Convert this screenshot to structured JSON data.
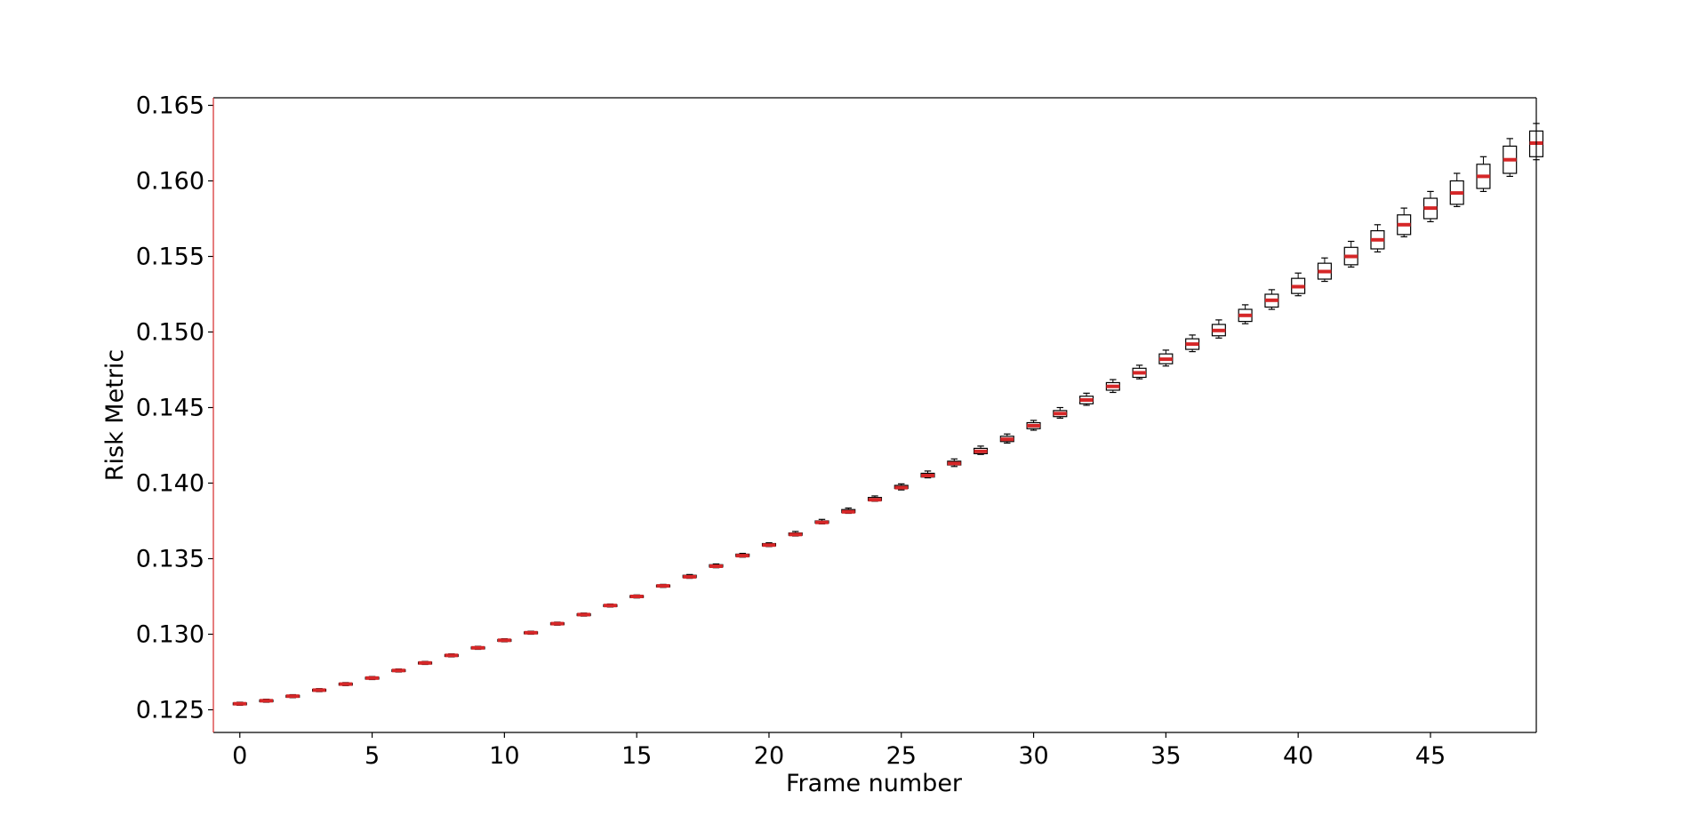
{
  "chart_data": {
    "type": "box",
    "title": "",
    "xlabel": "Frame number",
    "ylabel": "Risk Metric",
    "xlim": [
      -1,
      49
    ],
    "ylim": [
      0.1235,
      0.1655
    ],
    "xticks": [
      0,
      5,
      10,
      15,
      20,
      25,
      30,
      35,
      40,
      45
    ],
    "xtick_labels": [
      "0",
      "5",
      "10",
      "15",
      "20",
      "25",
      "30",
      "35",
      "40",
      "45"
    ],
    "yticks": [
      0.125,
      0.13,
      0.135,
      0.14,
      0.145,
      0.15,
      0.155,
      0.16,
      0.165
    ],
    "ytick_labels": [
      "0.125",
      "0.130",
      "0.135",
      "0.140",
      "0.145",
      "0.150",
      "0.155",
      "0.160",
      "0.165"
    ],
    "grid": false,
    "legend": "none",
    "colors": {
      "median": "#d62728",
      "box": "#000000",
      "left_spine": "#d62728"
    },
    "frames": [
      0,
      1,
      2,
      3,
      4,
      5,
      6,
      7,
      8,
      9,
      10,
      11,
      12,
      13,
      14,
      15,
      16,
      17,
      18,
      19,
      20,
      21,
      22,
      23,
      24,
      25,
      26,
      27,
      28,
      29,
      30,
      31,
      32,
      33,
      34,
      35,
      36,
      37,
      38,
      39,
      40,
      41,
      42,
      43,
      44,
      45,
      46,
      47,
      48,
      49
    ],
    "medians": [
      0.1254,
      0.1256,
      0.1259,
      0.1263,
      0.1267,
      0.1271,
      0.1276,
      0.1281,
      0.1286,
      0.1291,
      0.1296,
      0.1301,
      0.1307,
      0.1313,
      0.1319,
      0.1325,
      0.1332,
      0.1338,
      0.1345,
      0.1352,
      0.1359,
      0.1366,
      0.1374,
      0.1381,
      0.1389,
      0.1397,
      0.1405,
      0.1413,
      0.1421,
      0.1429,
      0.1438,
      0.1446,
      0.1455,
      0.1464,
      0.1473,
      0.1482,
      0.1492,
      0.1501,
      0.1511,
      0.1521,
      0.153,
      0.154,
      0.155,
      0.1561,
      0.1571,
      0.1582,
      0.1592,
      0.1603,
      0.1614,
      0.1625
    ],
    "q1": [
      0.12535,
      0.12555,
      0.12585,
      0.12625,
      0.12665,
      0.12705,
      0.12755,
      0.12805,
      0.12855,
      0.12905,
      0.12955,
      0.13005,
      0.13065,
      0.13125,
      0.13185,
      0.13245,
      0.13315,
      0.13375,
      0.13445,
      0.13515,
      0.13585,
      0.13655,
      0.13735,
      0.13805,
      0.13885,
      0.13965,
      0.1404,
      0.1412,
      0.14195,
      0.14275,
      0.1436,
      0.1444,
      0.14525,
      0.14615,
      0.147,
      0.1479,
      0.14885,
      0.14975,
      0.1507,
      0.15165,
      0.15255,
      0.1535,
      0.15445,
      0.1555,
      0.15645,
      0.1575,
      0.15845,
      0.1595,
      0.1605,
      0.1616
    ],
    "q3": [
      0.12545,
      0.12565,
      0.12595,
      0.12635,
      0.12675,
      0.12715,
      0.12765,
      0.12815,
      0.12865,
      0.12915,
      0.12965,
      0.13015,
      0.13075,
      0.13135,
      0.13195,
      0.13255,
      0.13325,
      0.1339,
      0.1346,
      0.1353,
      0.136,
      0.1367,
      0.1375,
      0.13825,
      0.13905,
      0.13985,
      0.14065,
      0.14145,
      0.1423,
      0.1431,
      0.144,
      0.1448,
      0.14575,
      0.14665,
      0.1476,
      0.14855,
      0.14955,
      0.1505,
      0.1515,
      0.1525,
      0.15355,
      0.15455,
      0.1556,
      0.1567,
      0.15775,
      0.15885,
      0.16,
      0.1611,
      0.1623,
      0.1633
    ],
    "whisker_low": [
      0.1253,
      0.1255,
      0.1258,
      0.1262,
      0.1266,
      0.127,
      0.1275,
      0.128,
      0.1285,
      0.129,
      0.1295,
      0.13,
      0.1306,
      0.1312,
      0.1318,
      0.1324,
      0.1331,
      0.1337,
      0.1344,
      0.1351,
      0.1358,
      0.1365,
      0.1373,
      0.138,
      0.1388,
      0.13955,
      0.14035,
      0.1411,
      0.1419,
      0.14265,
      0.1435,
      0.1443,
      0.14515,
      0.146,
      0.1469,
      0.14775,
      0.1487,
      0.1496,
      0.15055,
      0.1515,
      0.1524,
      0.15335,
      0.1543,
      0.1553,
      0.1563,
      0.1573,
      0.1583,
      0.1593,
      0.1603,
      0.1614
    ],
    "whisker_high": [
      0.1255,
      0.1257,
      0.126,
      0.1264,
      0.1268,
      0.1272,
      0.1277,
      0.1282,
      0.1287,
      0.1292,
      0.1297,
      0.1302,
      0.1308,
      0.1314,
      0.132,
      0.1326,
      0.1333,
      0.13395,
      0.13465,
      0.13535,
      0.13605,
      0.1368,
      0.1376,
      0.13835,
      0.13915,
      0.13995,
      0.1408,
      0.1416,
      0.14245,
      0.14325,
      0.14415,
      0.145,
      0.14595,
      0.14685,
      0.1478,
      0.1488,
      0.1498,
      0.1508,
      0.1518,
      0.1528,
      0.1539,
      0.1549,
      0.156,
      0.1571,
      0.1582,
      0.1593,
      0.1605,
      0.1616,
      0.1628,
      0.1638
    ]
  }
}
